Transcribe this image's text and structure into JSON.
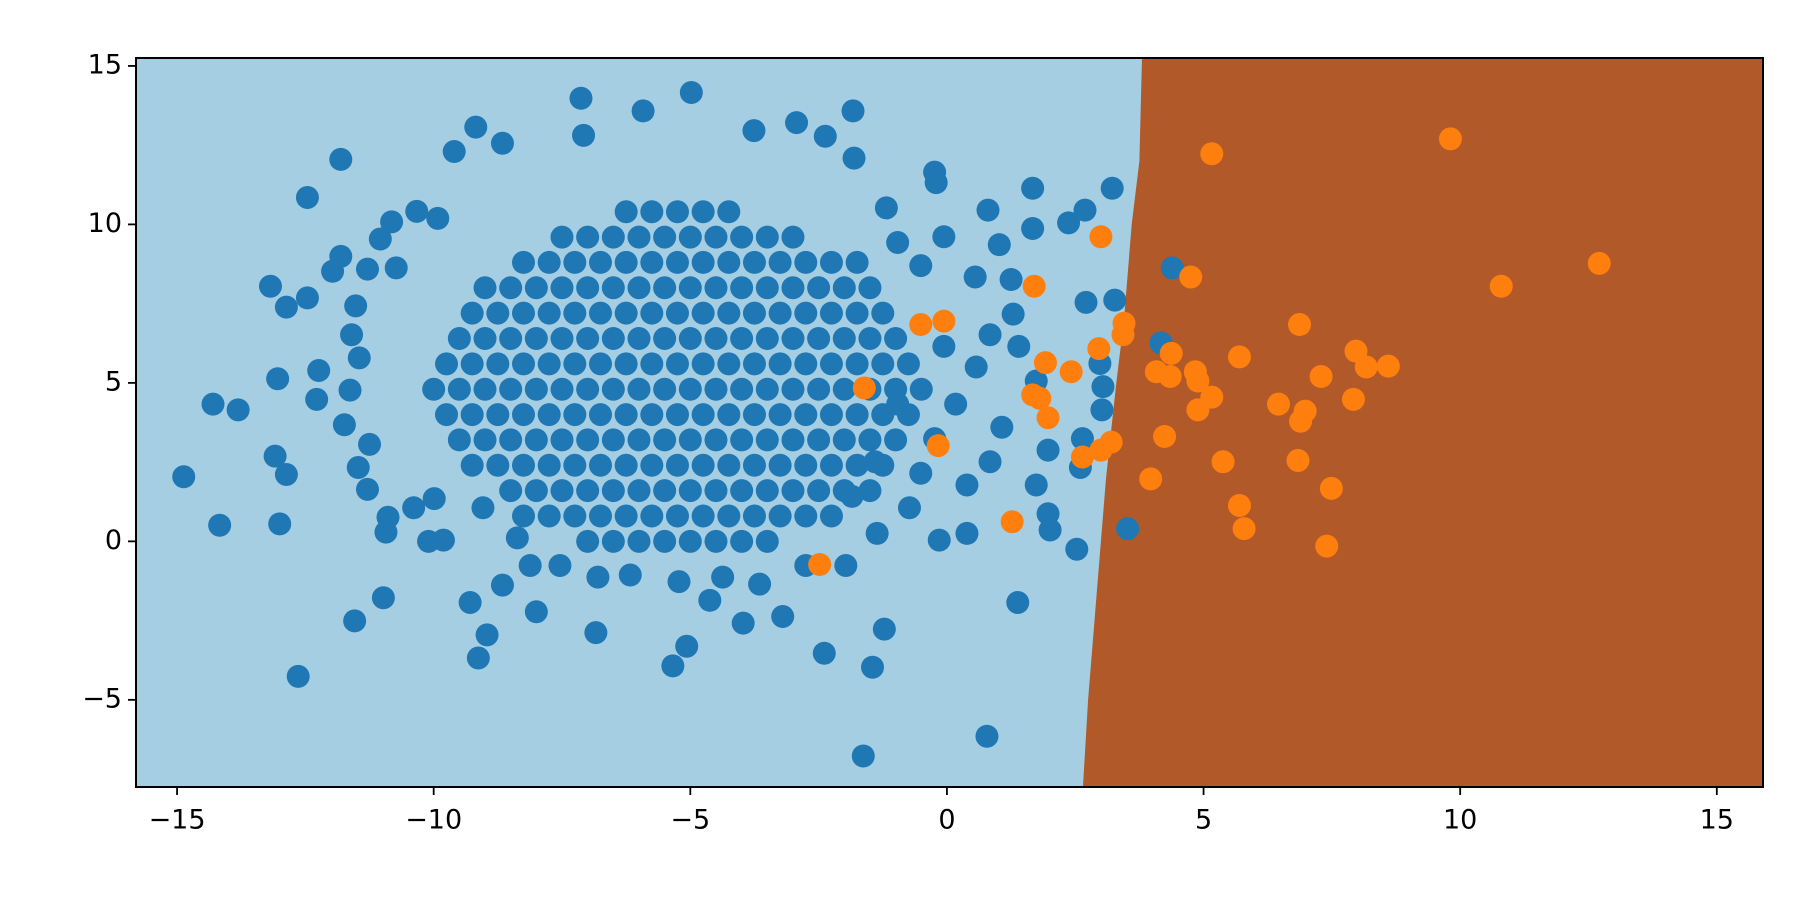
{
  "chart_data": {
    "type": "scatter",
    "xlim": [
      -15.8,
      15.9
    ],
    "ylim": [
      -7.75,
      15.25
    ],
    "xticks": [
      {
        "value": -15,
        "label": "−15"
      },
      {
        "value": -10,
        "label": "−10"
      },
      {
        "value": -5,
        "label": "−5"
      },
      0,
      5,
      10,
      15
    ],
    "yticks": [
      {
        "value": -5,
        "label": "−5"
      },
      0,
      5,
      10,
      15
    ],
    "grid": false,
    "region_colors": [
      "#a6cee3",
      "#b15928"
    ],
    "decision_boundary": {
      "x": [
        3.8,
        3.75,
        3.6,
        3.45,
        3.3,
        3.1,
        3.0,
        2.85,
        2.75,
        2.65
      ],
      "y": [
        15.25,
        12,
        10,
        7,
        5,
        2,
        0,
        -3,
        -5,
        -7.75
      ]
    },
    "series": [
      {
        "color": "#1f77b4",
        "x": [
          -7,
          -6.5,
          -6,
          -5.5,
          -5,
          -4.5,
          -4,
          -3.5,
          -8.25,
          -7.75,
          -7.25,
          -6.75,
          -6.25,
          -5.75,
          -5.25,
          -4.75,
          -4.25,
          -3.75,
          -3.25,
          -2.75,
          -2.25,
          -8.5,
          -8,
          -7.5,
          -7,
          -6.5,
          -6,
          -5.5,
          -5,
          -4.5,
          -4,
          -3.5,
          -3,
          -2.5,
          -2,
          -1.5,
          -9.25,
          -8.75,
          -8.25,
          -7.75,
          -7.25,
          -6.75,
          -6.25,
          -5.75,
          -5.25,
          -4.75,
          -4.25,
          -3.75,
          -3.25,
          -2.75,
          -2.25,
          -1.75,
          -1.25,
          -9.5,
          -9,
          -8.5,
          -8,
          -7.5,
          -7,
          -6.5,
          -6,
          -5.5,
          -5,
          -4.5,
          -4,
          -3.5,
          -3,
          -2.5,
          -2,
          -1.5,
          -1,
          -9.75,
          -9.25,
          -8.75,
          -8.25,
          -7.75,
          -7.25,
          -6.75,
          -6.25,
          -5.75,
          -5.25,
          -4.75,
          -4.25,
          -3.75,
          -3.25,
          -2.75,
          -2.25,
          -1.75,
          -1.25,
          -0.75,
          -10,
          -9.5,
          -9,
          -8.5,
          -8,
          -7.5,
          -7,
          -6.5,
          -6,
          -5.5,
          -5,
          -4.5,
          -4,
          -3.5,
          -3,
          -2.5,
          -2,
          -1.5,
          -1,
          -0.5,
          -9.75,
          -9.25,
          -8.75,
          -8.25,
          -7.75,
          -7.25,
          -6.75,
          -6.25,
          -5.75,
          -5.25,
          -4.75,
          -4.25,
          -3.75,
          -3.25,
          -2.75,
          -2.25,
          -1.75,
          -1.25,
          -0.75,
          -9.5,
          -9,
          -8.5,
          -8,
          -7.5,
          -7,
          -6.5,
          -6,
          -5.5,
          -5,
          -4.5,
          -4,
          -3.5,
          -3,
          -2.5,
          -2,
          -1.5,
          -1,
          -9.25,
          -8.75,
          -8.25,
          -7.75,
          -7.25,
          -6.75,
          -6.25,
          -5.75,
          -5.25,
          -4.75,
          -4.25,
          -3.75,
          -3.25,
          -2.75,
          -2.25,
          -1.75,
          -1.25,
          -9,
          -8.5,
          -8,
          -7.5,
          -7,
          -6.5,
          -6,
          -5.5,
          -5,
          -4.5,
          -4,
          -3.5,
          -3,
          -2.5,
          -2,
          -1.5,
          -8.25,
          -7.75,
          -7.25,
          -6.75,
          -6.25,
          -5.75,
          -5.25,
          -4.75,
          -4.25,
          -3.75,
          -3.25,
          -2.75,
          -2.25,
          -1.75,
          -7.5,
          -7,
          -6.5,
          -6,
          -5.5,
          -5,
          -4.5,
          -4,
          -3.5,
          -3,
          -6.25,
          -5.75,
          -5.25,
          -4.75,
          -4.25
        ],
        "values": [
          0,
          0,
          0,
          0,
          0,
          0,
          0,
          0,
          0.8,
          0.8,
          0.8,
          0.8,
          0.8,
          0.8,
          0.8,
          0.8,
          0.8,
          0.8,
          0.8,
          0.8,
          0.8,
          1.6,
          1.6,
          1.6,
          1.6,
          1.6,
          1.6,
          1.6,
          1.6,
          1.6,
          1.6,
          1.6,
          1.6,
          1.6,
          1.6,
          1.6,
          2.4,
          2.4,
          2.4,
          2.4,
          2.4,
          2.4,
          2.4,
          2.4,
          2.4,
          2.4,
          2.4,
          2.4,
          2.4,
          2.4,
          2.4,
          2.4,
          2.4,
          3.2,
          3.2,
          3.2,
          3.2,
          3.2,
          3.2,
          3.2,
          3.2,
          3.2,
          3.2,
          3.2,
          3.2,
          3.2,
          3.2,
          3.2,
          3.2,
          3.2,
          3.2,
          4,
          4,
          4,
          4,
          4,
          4,
          4,
          4,
          4,
          4,
          4,
          4,
          4,
          4,
          4,
          4,
          4,
          4,
          4,
          4.8,
          4.8,
          4.8,
          4.8,
          4.8,
          4.8,
          4.8,
          4.8,
          4.8,
          4.8,
          4.8,
          4.8,
          4.8,
          4.8,
          4.8,
          4.8,
          4.8,
          4.8,
          4.8,
          4.8,
          5.6,
          5.6,
          5.6,
          5.6,
          5.6,
          5.6,
          5.6,
          5.6,
          5.6,
          5.6,
          5.6,
          5.6,
          5.6,
          5.6,
          5.6,
          5.6,
          5.6,
          5.6,
          5.6,
          6.4,
          6.4,
          6.4,
          6.4,
          6.4,
          6.4,
          6.4,
          6.4,
          6.4,
          6.4,
          6.4,
          6.4,
          6.4,
          6.4,
          6.4,
          6.4,
          6.4,
          6.4,
          7.2,
          7.2,
          7.2,
          7.2,
          7.2,
          7.2,
          7.2,
          7.2,
          7.2,
          7.2,
          7.2,
          7.2,
          7.2,
          7.2,
          7.2,
          7.2,
          7.2,
          8,
          8,
          8,
          8,
          8,
          8,
          8,
          8,
          8,
          8,
          8,
          8,
          8,
          8,
          8,
          8,
          8.8,
          8.8,
          8.8,
          8.8,
          8.8,
          8.8,
          8.8,
          8.8,
          8.8,
          8.8,
          8.8,
          8.8,
          8.8,
          8.8,
          9.6,
          9.6,
          9.6,
          9.6,
          9.6,
          9.6,
          9.6,
          9.6,
          9.6,
          9.6,
          10.4,
          10.4,
          10.4,
          10.4,
          10.4
        ]
      },
      {
        "color": "#1f77b4",
        "x": [
          -14.87,
          -14.17,
          -14.3,
          -13.81,
          -13.18,
          -12.87,
          -12.46,
          -12.46,
          -11.81,
          -11.97,
          -11.81,
          -13.04,
          -12.24,
          -12.28,
          -13.09,
          -12.87,
          -13.0,
          -12.64,
          -11.54,
          -10.98,
          -10.93,
          -10.1,
          -9.81,
          -9.29,
          -9.13,
          -8.96,
          -8.66,
          -8.0,
          -6.84,
          -5.34,
          -5.07,
          -4.62,
          -3.97,
          -3.2,
          -2.39,
          -1.45,
          -1.22,
          -1.63,
          0.78,
          1.38,
          2.53,
          3.52,
          -0.15,
          0.39,
          2.01,
          1.97,
          2.6,
          2.64,
          3.02,
          3.04,
          2.98,
          3.27,
          2.71,
          3.22,
          2.37,
          2.69,
          1.67,
          1.67,
          0.8,
          1.02,
          -0.24,
          -0.21,
          0.55,
          1.25,
          4.39,
          4.17,
          -1.81,
          -1.83,
          -2.37,
          -2.93,
          -3.76,
          -4.98,
          -5.92,
          -7.13,
          -7.08,
          -9.18,
          -8.66,
          -9.6,
          -9.92,
          -10.33,
          -10.82,
          -11.04,
          -10.73,
          -11.29,
          -11.52,
          -11.6,
          -11.45,
          -11.63,
          -11.74,
          -11.25,
          -11.47,
          -11.29,
          -10.89,
          -10.39,
          -9.99,
          -9.04,
          -8.37,
          -8.12,
          -7.54,
          -6.8,
          -6.17,
          -5.22,
          -4.37,
          -3.65,
          -2.75,
          -1.97,
          -1.36,
          -0.73,
          -0.51,
          -0.24,
          0.17,
          0.57,
          0.84,
          1.29,
          1.4,
          1.74,
          1.07,
          0.84,
          0.39,
          1.74,
          1.97,
          -0.96,
          -0.51,
          -0.06,
          -1.18,
          -0.06,
          -0.96,
          -1.4,
          -1.85
        ],
        "values": [
          2.04,
          0.51,
          4.33,
          4.15,
          8.05,
          7.39,
          7.68,
          10.85,
          12.05,
          8.52,
          8.99,
          5.13,
          5.39,
          4.48,
          2.69,
          2.11,
          0.55,
          -4.26,
          -2.51,
          -1.78,
          0.29,
          0,
          0.04,
          -1.93,
          -3.68,
          -2.95,
          -1.38,
          -2.22,
          -2.88,
          -3.93,
          -3.31,
          -1.86,
          -2.58,
          -2.37,
          -3.53,
          -3.97,
          -2.77,
          -6.77,
          -6.15,
          -1.93,
          -0.25,
          0.4,
          0.04,
          0.25,
          0.36,
          0.87,
          2.33,
          3.24,
          4.15,
          4.88,
          5.61,
          7.61,
          7.54,
          11.14,
          10.05,
          10.45,
          11.14,
          9.87,
          10.45,
          9.36,
          11.65,
          11.32,
          8.34,
          8.26,
          8.63,
          6.26,
          12.09,
          13.58,
          12.78,
          13.21,
          12.96,
          14.16,
          13.58,
          13.98,
          12.81,
          13.07,
          12.56,
          12.3,
          10.19,
          10.41,
          10.08,
          9.54,
          8.63,
          8.59,
          7.43,
          6.52,
          5.79,
          4.77,
          3.68,
          3.06,
          2.33,
          1.64,
          0.76,
          1.06,
          1.35,
          1.06,
          0.11,
          -0.76,
          -0.76,
          -1.13,
          -1.06,
          -1.27,
          -1.13,
          -1.35,
          -0.76,
          -0.76,
          0.25,
          1.06,
          2.15,
          3.24,
          4.33,
          5.5,
          6.52,
          7.17,
          6.15,
          5.06,
          3.6,
          2.51,
          1.78,
          1.78,
          2.88,
          9.43,
          8.7,
          9.61,
          10.52,
          6.15,
          4.33,
          2.51,
          1.42
        ]
      },
      {
        "color": "#ff7f0e",
        "x": [
          9.81,
          5.16,
          12.71,
          10.8,
          3.0,
          4.75,
          1.7,
          -0.51,
          -0.06,
          3.45,
          3.43,
          6.87,
          2.96,
          4.37,
          5.7,
          7.97,
          8.17,
          8.6,
          7.29,
          1.92,
          2.42,
          4.08,
          4.35,
          4.84,
          4.89,
          -1.61,
          1.67,
          1.81,
          5.16,
          6.46,
          6.98,
          6.89,
          7.92,
          4.89,
          1.97,
          4.24,
          3.2,
          3.0,
          2.64,
          -0.17,
          3.97,
          5.38,
          6.84,
          7.49,
          5.7,
          5.79,
          7.4,
          1.27,
          -2.48
        ],
        "values": [
          12.7,
          12.23,
          8.77,
          8.05,
          9.61,
          8.34,
          8.05,
          6.84,
          6.95,
          6.88,
          6.52,
          6.84,
          6.08,
          5.93,
          5.82,
          6.0,
          5.5,
          5.53,
          5.2,
          5.64,
          5.35,
          5.35,
          5.2,
          5.35,
          5.06,
          4.84,
          4.62,
          4.51,
          4.55,
          4.33,
          4.11,
          3.79,
          4.48,
          4.15,
          3.9,
          3.31,
          3.13,
          2.88,
          2.66,
          3.02,
          1.97,
          2.51,
          2.55,
          1.67,
          1.13,
          0.4,
          -0.15,
          0.62,
          -0.73
        ]
      }
    ]
  }
}
